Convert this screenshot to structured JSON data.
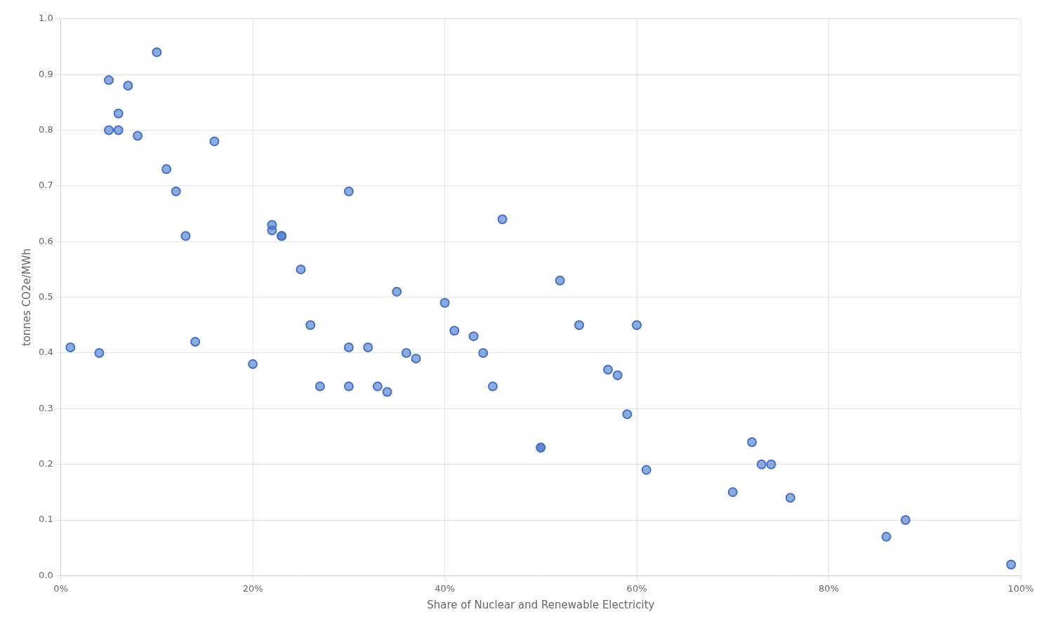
{
  "chart_data": {
    "type": "scatter",
    "xlabel": "Share of Nuclear and Renewable Electricity",
    "ylabel": "tonnes CO2e/MWh",
    "x": [
      0.01,
      0.04,
      0.05,
      0.05,
      0.06,
      0.06,
      0.07,
      0.08,
      0.1,
      0.11,
      0.12,
      0.13,
      0.14,
      0.16,
      0.2,
      0.22,
      0.22,
      0.23,
      0.23,
      0.25,
      0.26,
      0.27,
      0.3,
      0.3,
      0.3,
      0.32,
      0.33,
      0.34,
      0.35,
      0.36,
      0.37,
      0.4,
      0.41,
      0.43,
      0.44,
      0.45,
      0.46,
      0.5,
      0.5,
      0.52,
      0.54,
      0.57,
      0.58,
      0.59,
      0.6,
      0.61,
      0.7,
      0.72,
      0.73,
      0.74,
      0.76,
      0.86,
      0.88,
      0.99
    ],
    "values": [
      0.41,
      0.4,
      0.89,
      0.8,
      0.83,
      0.8,
      0.88,
      0.79,
      0.94,
      0.73,
      0.69,
      0.61,
      0.42,
      0.78,
      0.38,
      0.63,
      0.62,
      0.61,
      0.61,
      0.55,
      0.45,
      0.34,
      0.69,
      0.41,
      0.34,
      0.41,
      0.34,
      0.33,
      0.51,
      0.4,
      0.39,
      0.49,
      0.44,
      0.43,
      0.4,
      0.34,
      0.64,
      0.23,
      0.23,
      0.53,
      0.45,
      0.37,
      0.36,
      0.29,
      0.45,
      0.19,
      0.15,
      0.24,
      0.2,
      0.2,
      0.14,
      0.07,
      0.1,
      0.02
    ],
    "color": "#4472c4",
    "xlim": [
      0,
      1
    ],
    "ylim": [
      0,
      1
    ],
    "xticks": [
      {
        "value": 0,
        "label": "0%"
      },
      {
        "value": 0.2,
        "label": "20%"
      },
      {
        "value": 0.4,
        "label": "40%"
      },
      {
        "value": 0.6,
        "label": "60%"
      },
      {
        "value": 0.8,
        "label": "80%"
      },
      {
        "value": 1,
        "label": "100%"
      }
    ],
    "yticks": [
      {
        "value": 0,
        "label": "0.0"
      },
      0.1,
      0.2,
      0.3,
      0.4,
      0.5,
      0.6,
      0.7,
      0.8,
      0.9,
      {
        "value": 1,
        "label": "1.0"
      }
    ],
    "grid": true
  }
}
